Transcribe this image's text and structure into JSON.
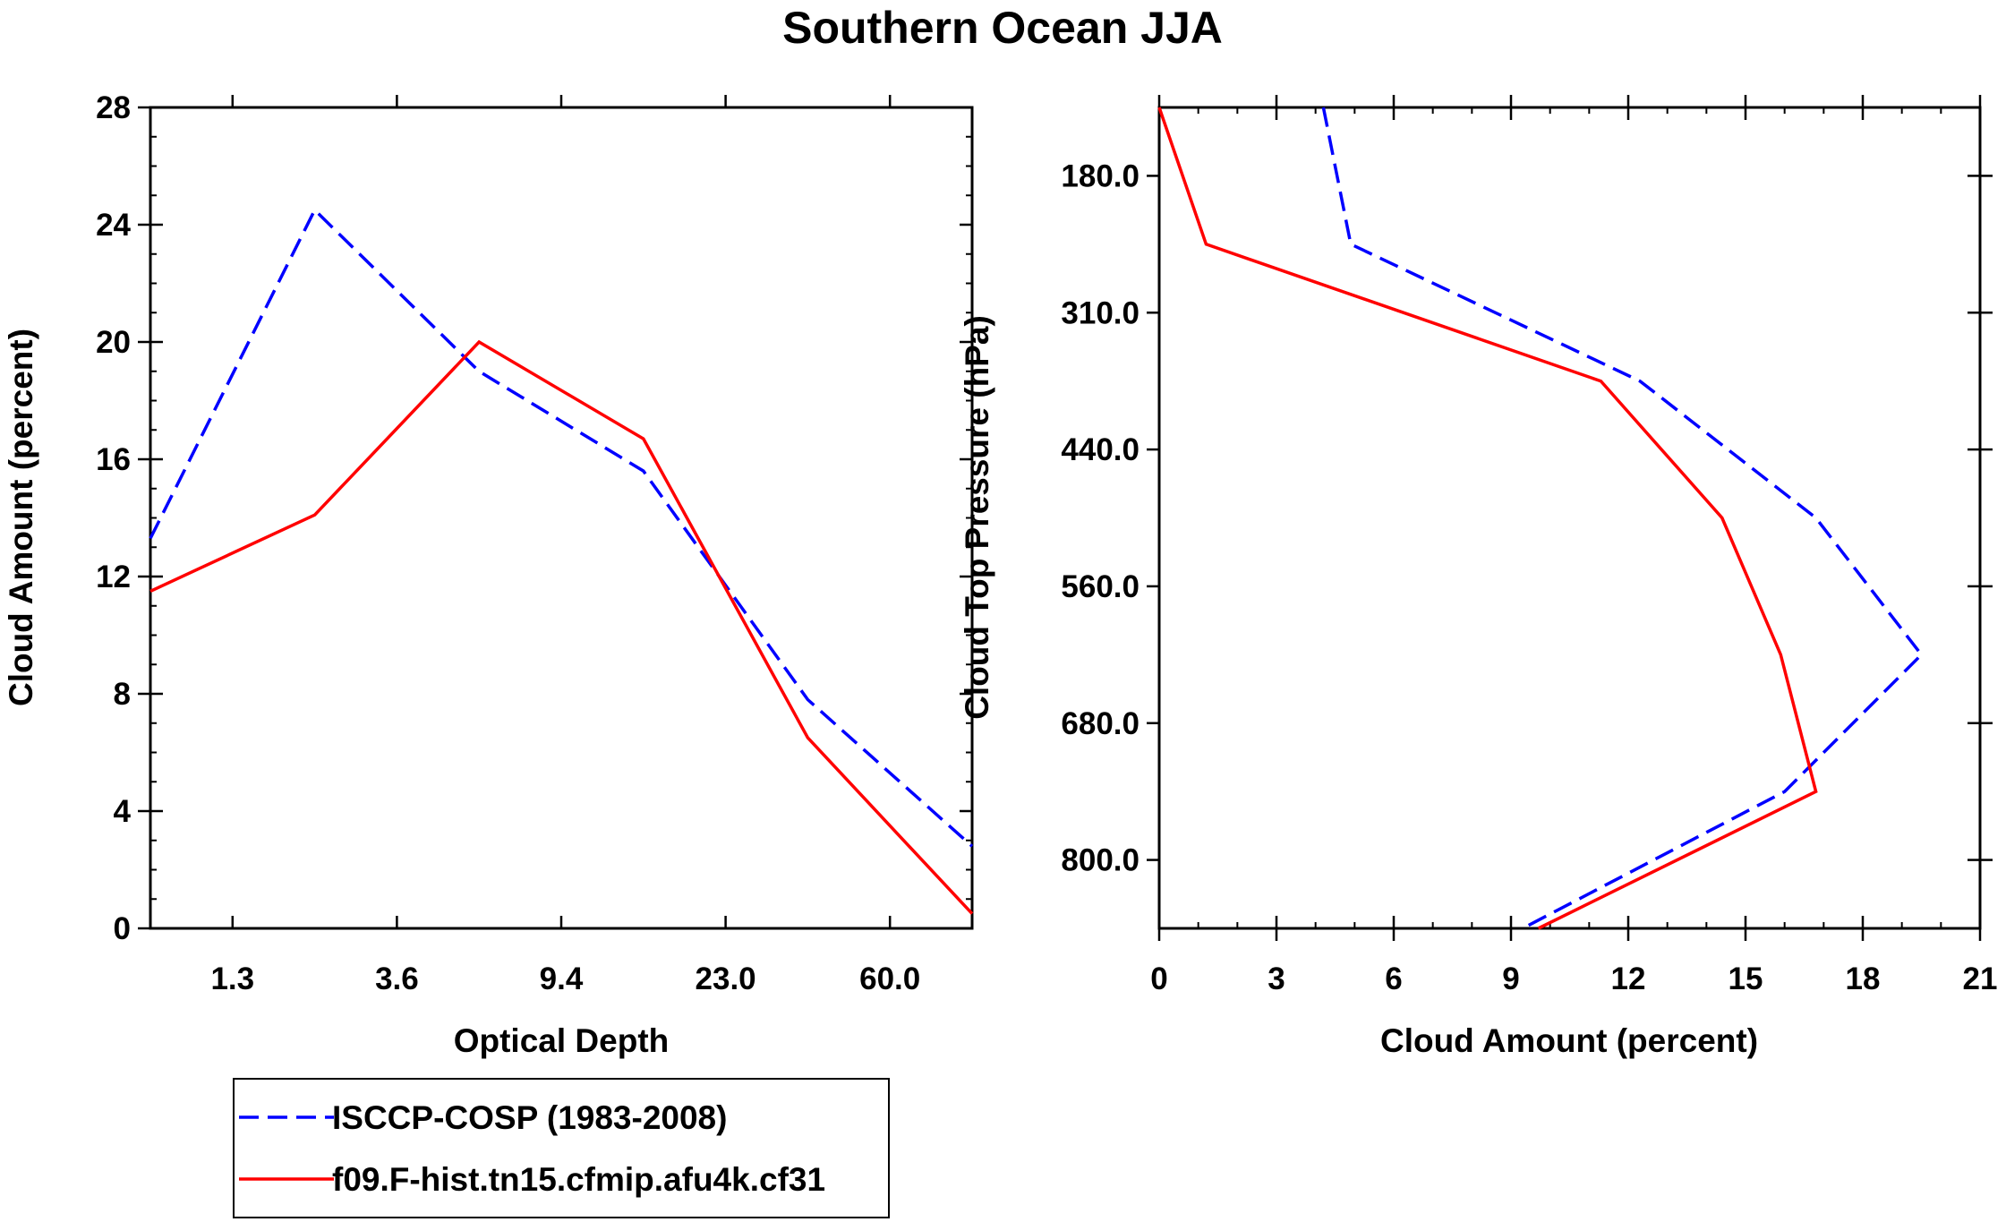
{
  "title": "Southern Ocean JJA",
  "legend": {
    "entries": [
      {
        "label": "ISCCP-COSP (1983-2008)",
        "color": "#0000ff",
        "dashed": true
      },
      {
        "label": "f09.F-hist.tn15.cfmip.afu4k.cf31",
        "color": "#ff0000",
        "dashed": false
      }
    ]
  },
  "chart_data": [
    {
      "type": "line",
      "xlabel": "Optical Depth",
      "ylabel": "Cloud Amount (percent)",
      "x_tick_labels": [
        "1.3",
        "3.6",
        "9.4",
        "23.0",
        "60.0"
      ],
      "y_tick_labels": [
        "0",
        "4",
        "8",
        "12",
        "16",
        "20",
        "24",
        "28"
      ],
      "y_ticks": [
        0,
        4,
        8,
        12,
        16,
        20,
        24,
        28
      ],
      "ylim": [
        0,
        28
      ],
      "xlim": [
        0,
        5
      ],
      "x_ticks": [
        0.5,
        1.5,
        2.5,
        3.5,
        4.5
      ],
      "series": [
        {
          "name": "ISCCP-COSP (1983-2008)",
          "x": [
            0,
            1,
            2,
            3,
            4,
            5
          ],
          "values": [
            13.3,
            24.5,
            19.0,
            15.6,
            7.8,
            2.8
          ]
        },
        {
          "name": "f09.F-hist.tn15.cfmip.afu4k.cf31",
          "x": [
            0,
            1,
            2,
            3,
            4,
            5
          ],
          "values": [
            11.5,
            14.1,
            20.0,
            16.7,
            6.5,
            0.5
          ]
        }
      ]
    },
    {
      "type": "line",
      "xlabel": "Cloud Amount (percent)",
      "ylabel": "Cloud Top Pressure (hPa)",
      "x_tick_labels": [
        "0",
        "3",
        "6",
        "9",
        "12",
        "15",
        "18",
        "21"
      ],
      "x_ticks": [
        0,
        3,
        6,
        9,
        12,
        15,
        18,
        21
      ],
      "xlim": [
        0,
        21
      ],
      "y_tick_labels": [
        "180.0",
        "310.0",
        "440.0",
        "560.0",
        "680.0",
        "800.0"
      ],
      "y_ticks": [
        0.5,
        1.5,
        2.5,
        3.5,
        4.5,
        5.5
      ],
      "ylim": [
        0,
        6
      ],
      "series": [
        {
          "name": "ISCCP-COSP (1983-2008)",
          "x": [
            4.2,
            4.9,
            12.3,
            16.8,
            19.5,
            16.0,
            9.3
          ],
          "y": [
            0,
            1,
            2,
            3,
            4,
            5,
            6
          ]
        },
        {
          "name": "f09.F-hist.tn15.cfmip.afu4k.cf31",
          "x": [
            0.0,
            1.2,
            11.3,
            14.4,
            15.9,
            16.8,
            9.7
          ],
          "y": [
            0,
            1,
            2,
            3,
            4,
            5,
            6
          ]
        }
      ]
    }
  ]
}
